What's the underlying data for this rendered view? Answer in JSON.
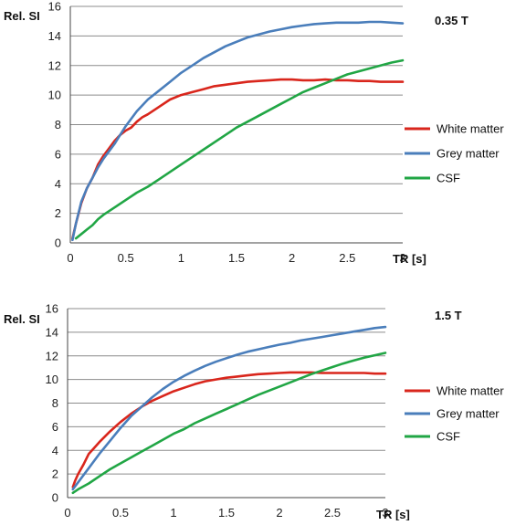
{
  "colors": {
    "white_matter": "#d9261c",
    "grey_matter": "#4a7ebb",
    "csf": "#21a645",
    "grid": "#8c8c8c",
    "axis": "#444444"
  },
  "chart_data": [
    {
      "type": "line",
      "field_label": "0.35 T",
      "ylabel": "Rel. SI",
      "xlabel": "TR [s]",
      "xlim": [
        0,
        3
      ],
      "ylim": [
        0,
        16
      ],
      "xticks": [
        "0",
        "0.5",
        "1",
        "1.5",
        "2",
        "2.5",
        "3"
      ],
      "yticks": [
        "0",
        "2",
        "4",
        "6",
        "8",
        "10",
        "12",
        "14",
        "16"
      ],
      "grid": "horizontal",
      "legend_position": "right",
      "series": [
        {
          "name": "White matter",
          "color_key": "white_matter",
          "x": [
            0.02,
            0.05,
            0.1,
            0.15,
            0.2,
            0.25,
            0.3,
            0.35,
            0.4,
            0.45,
            0.5,
            0.55,
            0.6,
            0.65,
            0.7,
            0.8,
            0.9,
            1.0,
            1.1,
            1.2,
            1.3,
            1.4,
            1.5,
            1.6,
            1.7,
            1.8,
            1.9,
            2.0,
            2.1,
            2.2,
            2.3,
            2.4,
            2.5,
            2.6,
            2.7,
            2.8,
            2.9,
            3.0
          ],
          "y": [
            0.3,
            1.3,
            2.7,
            3.7,
            4.4,
            5.3,
            5.9,
            6.4,
            6.9,
            7.3,
            7.6,
            7.8,
            8.2,
            8.5,
            8.7,
            9.2,
            9.7,
            10.0,
            10.2,
            10.4,
            10.6,
            10.7,
            10.8,
            10.9,
            10.95,
            11.0,
            11.05,
            11.05,
            11.0,
            11.0,
            11.05,
            11.0,
            11.0,
            10.95,
            10.95,
            10.9,
            10.9,
            10.9
          ]
        },
        {
          "name": "Grey matter",
          "color_key": "grey_matter",
          "x": [
            0.02,
            0.05,
            0.1,
            0.15,
            0.2,
            0.25,
            0.3,
            0.4,
            0.5,
            0.6,
            0.7,
            0.8,
            0.9,
            1.0,
            1.1,
            1.2,
            1.3,
            1.4,
            1.5,
            1.6,
            1.7,
            1.8,
            1.9,
            2.0,
            2.1,
            2.2,
            2.3,
            2.4,
            2.5,
            2.6,
            2.7,
            2.8,
            2.9,
            3.0
          ],
          "y": [
            0.2,
            1.3,
            2.8,
            3.7,
            4.4,
            5.1,
            5.7,
            6.7,
            7.9,
            8.9,
            9.7,
            10.3,
            10.9,
            11.5,
            12.0,
            12.5,
            12.9,
            13.3,
            13.6,
            13.9,
            14.1,
            14.3,
            14.45,
            14.6,
            14.7,
            14.8,
            14.85,
            14.9,
            14.9,
            14.9,
            14.95,
            14.95,
            14.9,
            14.85
          ]
        },
        {
          "name": "CSF",
          "color_key": "csf",
          "x": [
            0.05,
            0.1,
            0.15,
            0.2,
            0.25,
            0.3,
            0.4,
            0.5,
            0.6,
            0.7,
            0.8,
            0.9,
            1.0,
            1.1,
            1.2,
            1.3,
            1.4,
            1.5,
            1.6,
            1.7,
            1.8,
            1.9,
            2.0,
            2.1,
            2.2,
            2.3,
            2.4,
            2.5,
            2.6,
            2.7,
            2.8,
            2.9,
            3.0
          ],
          "y": [
            0.3,
            0.6,
            0.9,
            1.2,
            1.6,
            1.9,
            2.4,
            2.9,
            3.4,
            3.8,
            4.3,
            4.8,
            5.3,
            5.8,
            6.3,
            6.8,
            7.3,
            7.8,
            8.2,
            8.6,
            9.0,
            9.4,
            9.8,
            10.2,
            10.5,
            10.8,
            11.1,
            11.4,
            11.6,
            11.8,
            12.0,
            12.2,
            12.35
          ]
        }
      ]
    },
    {
      "type": "line",
      "field_label": "1.5 T",
      "ylabel": "Rel. SI",
      "xlabel": "TR [s]",
      "xlim": [
        0,
        3
      ],
      "ylim": [
        0,
        16
      ],
      "xticks": [
        "0",
        "0.5",
        "1",
        "1.5",
        "2",
        "2.5",
        "3"
      ],
      "yticks": [
        "0",
        "2",
        "4",
        "6",
        "8",
        "10",
        "12",
        "14",
        "16"
      ],
      "grid": "horizontal",
      "legend_position": "right",
      "series": [
        {
          "name": "White matter",
          "color_key": "white_matter",
          "x": [
            0.05,
            0.07,
            0.1,
            0.15,
            0.2,
            0.25,
            0.3,
            0.4,
            0.5,
            0.6,
            0.7,
            0.8,
            0.9,
            1.0,
            1.1,
            1.2,
            1.3,
            1.4,
            1.5,
            1.6,
            1.7,
            1.8,
            1.9,
            2.0,
            2.1,
            2.2,
            2.3,
            2.4,
            2.5,
            2.6,
            2.7,
            2.8,
            2.9,
            3.0
          ],
          "y": [
            0.9,
            1.4,
            2.0,
            2.8,
            3.7,
            4.2,
            4.7,
            5.6,
            6.4,
            7.1,
            7.7,
            8.2,
            8.6,
            9.0,
            9.3,
            9.6,
            9.85,
            10.0,
            10.15,
            10.25,
            10.35,
            10.45,
            10.5,
            10.55,
            10.6,
            10.6,
            10.6,
            10.55,
            10.55,
            10.55,
            10.55,
            10.55,
            10.5,
            10.5
          ]
        },
        {
          "name": "Grey matter",
          "color_key": "grey_matter",
          "x": [
            0.05,
            0.1,
            0.2,
            0.3,
            0.4,
            0.5,
            0.6,
            0.7,
            0.8,
            0.9,
            1.0,
            1.1,
            1.2,
            1.3,
            1.4,
            1.5,
            1.6,
            1.7,
            1.8,
            1.9,
            2.0,
            2.1,
            2.2,
            2.3,
            2.4,
            2.5,
            2.6,
            2.7,
            2.8,
            2.9,
            3.0
          ],
          "y": [
            0.7,
            1.3,
            2.5,
            3.7,
            4.8,
            5.9,
            6.9,
            7.7,
            8.5,
            9.2,
            9.8,
            10.3,
            10.75,
            11.15,
            11.5,
            11.8,
            12.1,
            12.35,
            12.55,
            12.75,
            12.95,
            13.1,
            13.3,
            13.45,
            13.6,
            13.75,
            13.9,
            14.05,
            14.2,
            14.35,
            14.45
          ]
        },
        {
          "name": "CSF",
          "color_key": "csf",
          "x": [
            0.05,
            0.1,
            0.2,
            0.3,
            0.4,
            0.5,
            0.6,
            0.7,
            0.8,
            0.9,
            1.0,
            1.1,
            1.2,
            1.3,
            1.4,
            1.5,
            1.6,
            1.7,
            1.8,
            1.9,
            2.0,
            2.1,
            2.2,
            2.3,
            2.4,
            2.5,
            2.6,
            2.7,
            2.8,
            2.9,
            3.0
          ],
          "y": [
            0.4,
            0.7,
            1.2,
            1.8,
            2.4,
            2.9,
            3.4,
            3.9,
            4.4,
            4.9,
            5.4,
            5.8,
            6.3,
            6.7,
            7.1,
            7.5,
            7.9,
            8.3,
            8.7,
            9.05,
            9.4,
            9.75,
            10.1,
            10.45,
            10.75,
            11.05,
            11.35,
            11.6,
            11.85,
            12.05,
            12.25
          ]
        }
      ]
    }
  ]
}
